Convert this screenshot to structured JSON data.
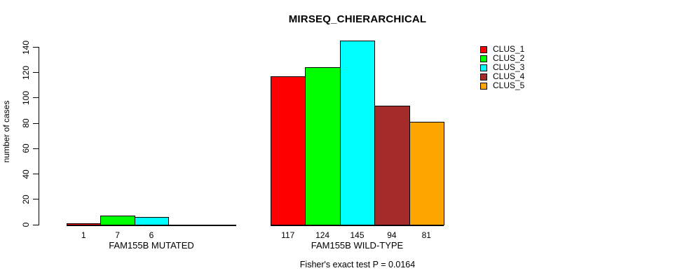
{
  "chart_data": {
    "type": "bar",
    "title": "MIRSEQ_CHIERARCHICAL",
    "ylabel": "number of cases",
    "xlabel": "",
    "ylim": [
      0,
      140
    ],
    "yticks": [
      0,
      20,
      40,
      60,
      80,
      100,
      120,
      140
    ],
    "grid": false,
    "legend": {
      "position": "top-right",
      "entries": [
        {
          "label": "CLUS_1",
          "color": "#FF0000"
        },
        {
          "label": "CLUS_2",
          "color": "#00FF00"
        },
        {
          "label": "CLUS_3",
          "color": "#00FFFF"
        },
        {
          "label": "CLUS_4",
          "color": "#A52A2A"
        },
        {
          "label": "CLUS_5",
          "color": "#FFA500"
        }
      ]
    },
    "groups": [
      {
        "label": "FAM155B MUTATED",
        "slot_count": 5,
        "bars": [
          {
            "cluster": "CLUS_1",
            "value": 1,
            "color": "#FF0000"
          },
          {
            "cluster": "CLUS_2",
            "value": 7,
            "color": "#00FF00"
          },
          {
            "cluster": "CLUS_3",
            "value": 6,
            "color": "#00FFFF"
          }
        ]
      },
      {
        "label": "FAM155B WILD-TYPE",
        "slot_count": 5,
        "bars": [
          {
            "cluster": "CLUS_1",
            "value": 117,
            "color": "#FF0000"
          },
          {
            "cluster": "CLUS_2",
            "value": 124,
            "color": "#00FF00"
          },
          {
            "cluster": "CLUS_3",
            "value": 145,
            "color": "#00FFFF"
          },
          {
            "cluster": "CLUS_4",
            "value": 94,
            "color": "#A52A2A"
          },
          {
            "cluster": "CLUS_5",
            "value": 81,
            "color": "#FFA500"
          }
        ]
      }
    ],
    "footnote": "Fisher's exact test P = 0.0164"
  }
}
